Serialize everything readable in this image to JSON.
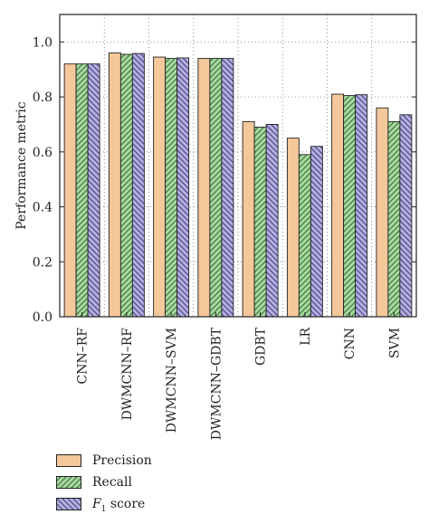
{
  "chart_data": {
    "type": "bar",
    "ylabel": "Performance metric",
    "xlabel": "",
    "ylim": [
      0.0,
      1.1
    ],
    "yticks": [
      "0.0",
      "0.2",
      "0.4",
      "0.6",
      "0.8",
      "1.0"
    ],
    "ytick_values": [
      0.0,
      0.2,
      0.4,
      0.6,
      0.8,
      1.0
    ],
    "grid": "dotted",
    "legend_position": "bottom",
    "categories": [
      "CNN–RF",
      "DWMCNN–RF",
      "DWMCNN–SVM",
      "DWMCNN–GDBT",
      "GDBT",
      "LR",
      "CNN",
      "SVM"
    ],
    "series": [
      {
        "name": "Precision",
        "values": [
          0.92,
          0.96,
          0.945,
          0.94,
          0.71,
          0.65,
          0.81,
          0.76
        ],
        "color": "#f4c89a",
        "pattern": "solid"
      },
      {
        "name": "Recall",
        "values": [
          0.92,
          0.955,
          0.94,
          0.94,
          0.69,
          0.59,
          0.805,
          0.71
        ],
        "color": "#a8d8a0",
        "pattern": "hatch-forward"
      },
      {
        "name": "F1 score",
        "values": [
          0.92,
          0.958,
          0.942,
          0.94,
          0.7,
          0.62,
          0.808,
          0.735
        ],
        "color": "#b3aee0",
        "pattern": "hatch-back"
      }
    ]
  },
  "legend": {
    "precision_label": "Precision",
    "recall_label": "Recall",
    "f1_italic": "F",
    "f1_sub": "1",
    "f1_rest": " score"
  }
}
